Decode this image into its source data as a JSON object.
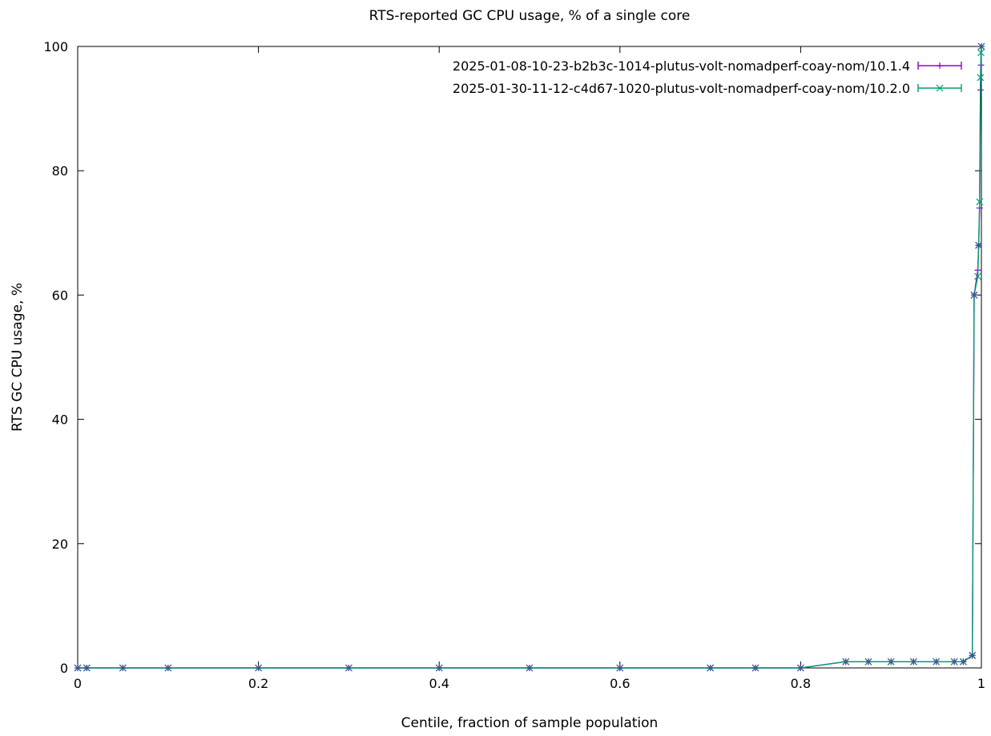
{
  "chart_data": {
    "type": "line",
    "title": "RTS-reported GC CPU usage, % of a single core",
    "xlabel": "Centile, fraction of sample population",
    "ylabel": "RTS GC CPU usage, %",
    "xlim": [
      0,
      1
    ],
    "ylim": [
      0,
      100
    ],
    "x_ticks": [
      "0",
      "0.2",
      "0.4",
      "0.6",
      "0.8",
      "1"
    ],
    "x_tick_values": [
      0,
      0.2,
      0.4,
      0.6,
      0.8,
      1
    ],
    "y_ticks": [
      "0",
      "20",
      "40",
      "60",
      "80",
      "100"
    ],
    "y_tick_values": [
      0,
      20,
      40,
      60,
      80,
      100
    ],
    "grid": false,
    "legend_position": "top-right",
    "series": [
      {
        "name": "2025-01-08-10-23-b2b3c-1014-plutus-volt-nomadperf-coay-nom/10.1.4",
        "color": "#9400d3",
        "marker": "plus",
        "x": [
          0,
          0.01,
          0.05,
          0.1,
          0.2,
          0.3,
          0.4,
          0.5,
          0.6,
          0.7,
          0.75,
          0.8,
          0.85,
          0.875,
          0.9,
          0.925,
          0.95,
          0.97,
          0.98,
          0.99,
          0.992,
          0.996,
          0.997,
          0.998,
          0.999,
          0.9995,
          1.0
        ],
        "y": [
          0,
          0,
          0,
          0,
          0,
          0,
          0,
          0,
          0,
          0,
          0,
          0,
          1,
          1,
          1,
          1,
          1,
          1,
          1,
          2,
          60,
          64,
          68,
          74,
          93,
          97,
          100
        ]
      },
      {
        "name": "2025-01-30-11-12-c4d67-1020-plutus-volt-nomadperf-coay-nom/10.2.0",
        "color": "#009e73",
        "marker": "cross",
        "x": [
          0,
          0.01,
          0.05,
          0.1,
          0.2,
          0.3,
          0.4,
          0.5,
          0.6,
          0.7,
          0.75,
          0.8,
          0.85,
          0.875,
          0.9,
          0.925,
          0.95,
          0.97,
          0.98,
          0.99,
          0.992,
          0.996,
          0.997,
          0.998,
          0.999,
          0.9995,
          1.0
        ],
        "y": [
          0,
          0,
          0,
          0,
          0,
          0,
          0,
          0,
          0,
          0,
          0,
          0,
          1,
          1,
          1,
          1,
          1,
          1,
          1,
          2,
          60,
          63,
          68,
          75,
          95,
          99,
          100
        ]
      }
    ]
  }
}
